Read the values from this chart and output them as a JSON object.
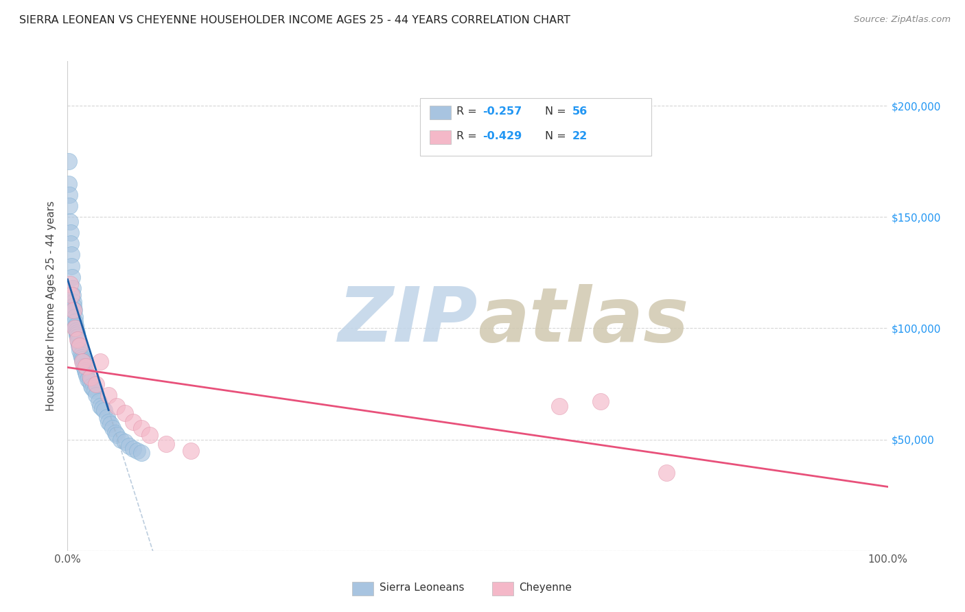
{
  "title": "SIERRA LEONEAN VS CHEYENNE HOUSEHOLDER INCOME AGES 25 - 44 YEARS CORRELATION CHART",
  "source": "Source: ZipAtlas.com",
  "ylabel": "Householder Income Ages 25 - 44 years",
  "xlim": [
    0.0,
    100.0
  ],
  "ylim": [
    0,
    220000
  ],
  "yticks": [
    0,
    50000,
    100000,
    150000,
    200000
  ],
  "ytick_labels": [
    "",
    "$50,000",
    "$100,000",
    "$150,000",
    "$200,000"
  ],
  "sierra_leonean_color": "#a8c4e0",
  "cheyenne_color": "#f4b8c8",
  "sierra_trend_color": "#1a5fa8",
  "cheyenne_trend_color": "#e8507a",
  "dashed_extension_color": "#a0b8d0",
  "watermark": "ZIPatlas",
  "watermark_color_zip": "#c0d4e8",
  "watermark_color_atlas": "#d0c8b0",
  "background_color": "#ffffff",
  "grid_color": "#cccccc",
  "legend_blue_color": "#a8c4e0",
  "legend_pink_color": "#f4b8c8",
  "legend_text_color": "#333333",
  "legend_value_color": "#2196F3",
  "sierra_R": -0.257,
  "sierra_N": 56,
  "cheyenne_R": -0.429,
  "cheyenne_N": 22,
  "sierra_x": [
    0.1,
    0.15,
    0.2,
    0.25,
    0.3,
    0.35,
    0.4,
    0.45,
    0.5,
    0.55,
    0.6,
    0.65,
    0.7,
    0.75,
    0.8,
    0.85,
    0.9,
    0.95,
    1.0,
    1.05,
    1.1,
    1.15,
    1.2,
    1.3,
    1.4,
    1.5,
    1.6,
    1.7,
    1.8,
    1.9,
    2.0,
    2.1,
    2.2,
    2.3,
    2.5,
    2.7,
    2.9,
    3.1,
    3.3,
    3.5,
    3.8,
    4.0,
    4.2,
    4.5,
    4.8,
    5.0,
    5.2,
    5.5,
    5.8,
    6.0,
    6.5,
    7.0,
    7.5,
    8.0,
    8.5,
    9.0
  ],
  "sierra_y": [
    175000,
    165000,
    160000,
    155000,
    148000,
    143000,
    138000,
    133000,
    128000,
    123000,
    118000,
    115000,
    112000,
    110000,
    108000,
    105000,
    103000,
    101000,
    100000,
    99000,
    98000,
    97000,
    96000,
    94000,
    92000,
    90000,
    88000,
    87000,
    86000,
    85000,
    83000,
    81000,
    80000,
    79000,
    77000,
    76000,
    74000,
    73000,
    72000,
    70000,
    67000,
    65000,
    64000,
    63000,
    60000,
    58000,
    57000,
    55000,
    53000,
    52000,
    50000,
    49000,
    47000,
    46000,
    45000,
    44000
  ],
  "cheyenne_x": [
    0.3,
    0.5,
    0.7,
    0.9,
    1.2,
    1.5,
    1.8,
    2.2,
    2.8,
    3.5,
    4.0,
    5.0,
    6.0,
    7.0,
    8.0,
    9.0,
    10.0,
    12.0,
    15.0,
    60.0,
    65.0,
    73.0
  ],
  "cheyenne_y": [
    120000,
    115000,
    108000,
    100000,
    95000,
    92000,
    85000,
    83000,
    78000,
    75000,
    85000,
    70000,
    65000,
    62000,
    58000,
    55000,
    52000,
    48000,
    45000,
    65000,
    67000,
    35000
  ]
}
